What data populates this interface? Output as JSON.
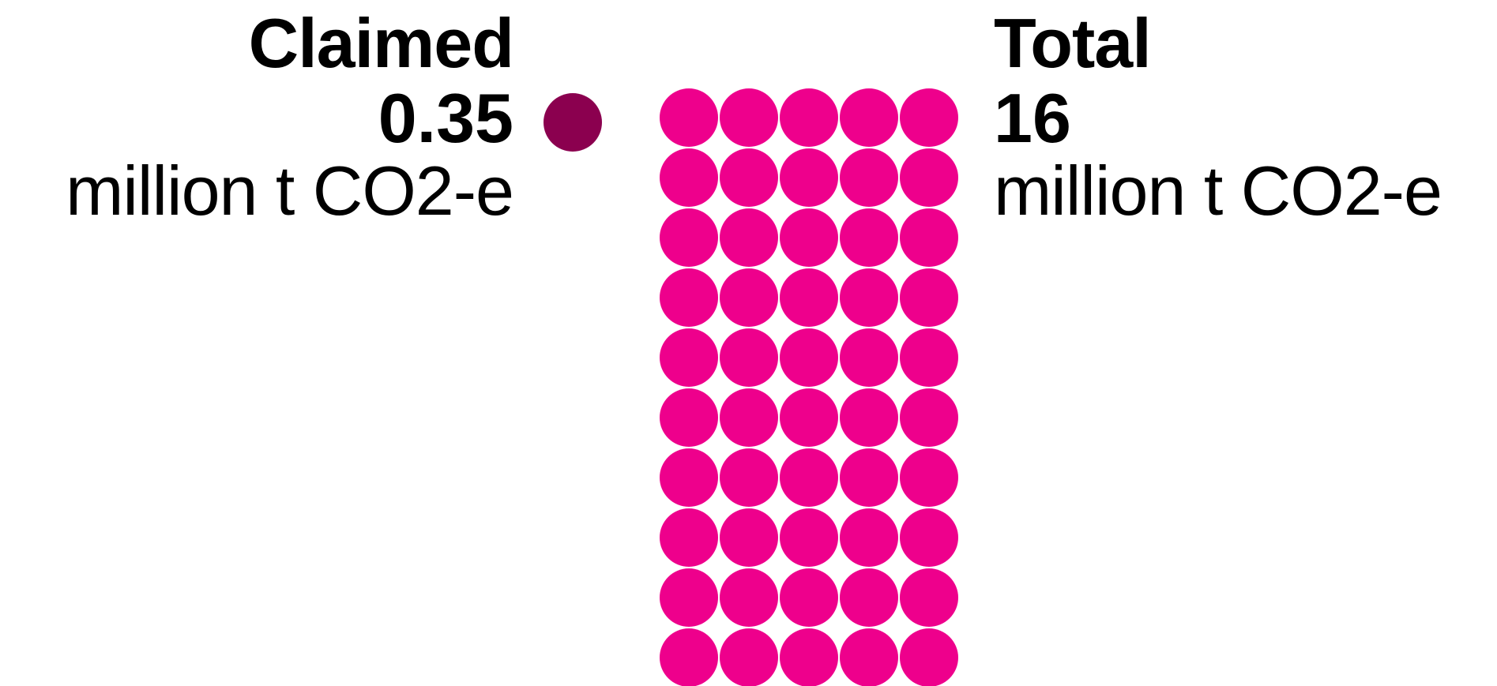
{
  "chart_data": {
    "type": "waffle",
    "unit_per_dot": 0.35,
    "claimed": {
      "heading": "Claimed",
      "value": "0.35",
      "unit": "million t CO2-e",
      "number": 0.35,
      "color": "#8B004F"
    },
    "total": {
      "heading": "Total",
      "value": "16",
      "unit": "million t CO2-e",
      "number": 16,
      "color": "#EE008C",
      "grid_columns": 5,
      "grid_rows": 10
    }
  }
}
